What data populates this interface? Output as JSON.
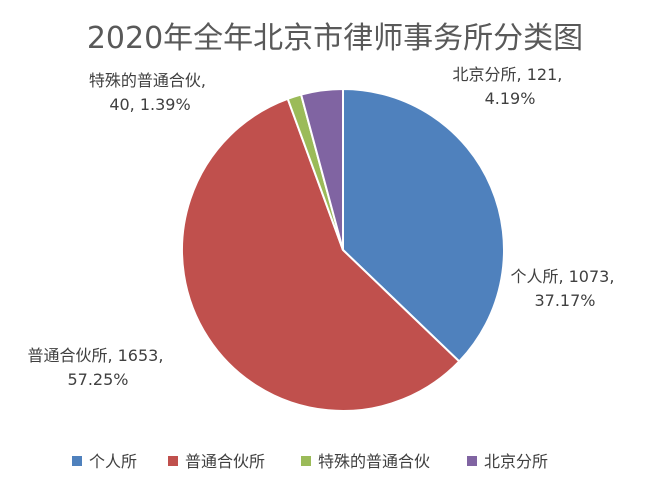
{
  "chart_data": {
    "type": "pie",
    "title": "2020年全年北京市律师事务所分类图",
    "slices": [
      {
        "name": "个人所",
        "value": 1073,
        "percent": "37.17%",
        "color": "#4F81BD"
      },
      {
        "name": "普通合伙所",
        "value": 1653,
        "percent": "57.25%",
        "color": "#C0504D"
      },
      {
        "name": "特殊的普通合伙",
        "value": 40,
        "percent": "1.39%",
        "color": "#9BBB59"
      },
      {
        "name": "北京分所",
        "value": 121,
        "percent": "4.19%",
        "color": "#8064A2"
      }
    ],
    "data_labels": [
      {
        "line1": "个人所, 1073,",
        "line2": "37.17%"
      },
      {
        "line1": "普通合伙所, 1653,",
        "line2": "57.25%"
      },
      {
        "line1": "特殊的普通合伙,",
        "line2": "40, 1.39%"
      },
      {
        "line1": "北京分所, 121,",
        "line2": "4.19%"
      }
    ],
    "legend_position": "bottom"
  }
}
